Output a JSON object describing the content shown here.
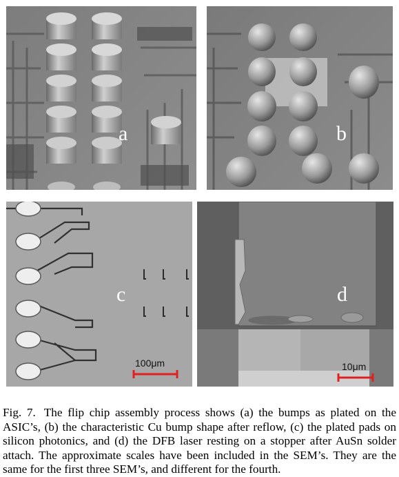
{
  "figure": {
    "panels": [
      {
        "letter": "a",
        "description_icon": "sem-plated-bumps"
      },
      {
        "letter": "b",
        "description_icon": "sem-reflowed-bumps"
      },
      {
        "letter": "c",
        "description_icon": "sem-plated-pads",
        "scale_label": "100μm"
      },
      {
        "letter": "d",
        "description_icon": "sem-dfb-laser",
        "scale_label": "10μm"
      }
    ],
    "caption_label": "Fig. 7.",
    "caption_text": "The flip chip assembly process shows (a) the bumps as plated on the ASIC’s, (b) the characteristic Cu bump shape after reflow, (c) the plated pads on silicon photonics, and (d) the DFB laser resting on a stopper after AuSn solder attach. The approximate scales have been included in the SEM’s. They are the same for the first three SEM’s, and different for the fourth."
  },
  "colors": {
    "scale_bar": "#e02020",
    "panel_letter": "#ffffff"
  }
}
